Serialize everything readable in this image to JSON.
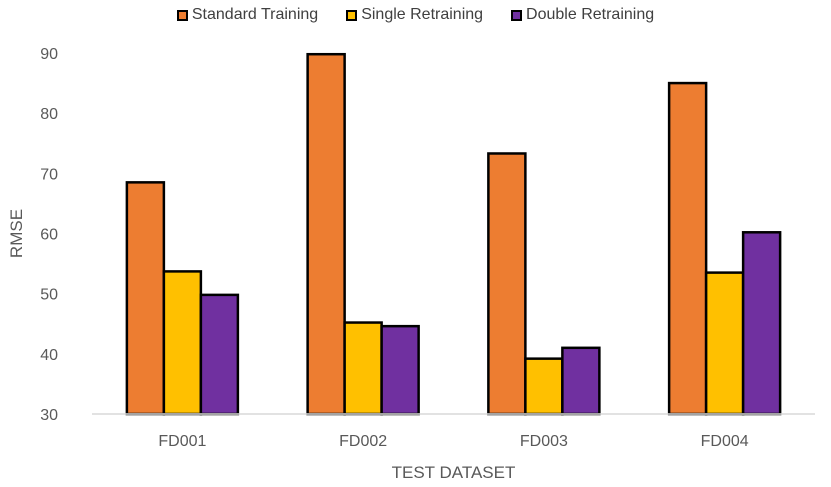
{
  "chart_data": {
    "type": "bar",
    "title": "",
    "xlabel": "TEST DATASET",
    "ylabel": "RMSE",
    "ylim": [
      30,
      90
    ],
    "yticks": [
      30,
      40,
      50,
      60,
      70,
      80,
      90
    ],
    "categories": [
      "FD001",
      "FD002",
      "FD003",
      "FD004"
    ],
    "series": [
      {
        "name": "Standard Training",
        "color": "#ED7D31",
        "values": [
          68.5,
          89.8,
          73.3,
          85.0
        ]
      },
      {
        "name": "Single Retraining",
        "color": "#FFC000",
        "values": [
          53.7,
          45.2,
          39.2,
          53.5
        ]
      },
      {
        "name": "Double Retraining",
        "color": "#7030A0",
        "values": [
          49.8,
          44.6,
          41.0,
          60.2
        ]
      }
    ],
    "grid": false,
    "legend_position": "top-center"
  }
}
